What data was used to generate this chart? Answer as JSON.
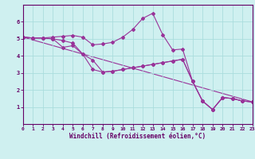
{
  "xlabel": "Windchill (Refroidissement éolien,°C)",
  "background_color": "#cff0f0",
  "line_color": "#993399",
  "grid_color": "#aadddd",
  "xlim": [
    0,
    23
  ],
  "ylim": [
    0,
    7
  ],
  "xticks": [
    0,
    1,
    2,
    3,
    4,
    5,
    6,
    7,
    8,
    9,
    10,
    11,
    12,
    13,
    14,
    15,
    16,
    17,
    18,
    19,
    20,
    21,
    22,
    23
  ],
  "yticks": [
    1,
    2,
    3,
    4,
    5,
    6
  ],
  "lines": [
    {
      "x": [
        0,
        1,
        2,
        3,
        4,
        5,
        6,
        7,
        8,
        9,
        10,
        11,
        12,
        13,
        14,
        15,
        16,
        17,
        18,
        19,
        20,
        21,
        22,
        23
      ],
      "y": [
        5.1,
        5.05,
        5.05,
        5.1,
        5.15,
        5.2,
        5.1,
        4.65,
        4.7,
        4.8,
        5.1,
        5.55,
        6.2,
        6.5,
        5.25,
        4.35,
        4.4,
        2.5,
        1.35,
        0.85,
        1.55,
        1.5,
        1.35,
        1.3
      ]
    },
    {
      "x": [
        0,
        1,
        2,
        3,
        4,
        5,
        6,
        7,
        8,
        9,
        10,
        11,
        12,
        13,
        14,
        15,
        16,
        17,
        18,
        19,
        20,
        21,
        22,
        23
      ],
      "y": [
        5.1,
        5.05,
        5.05,
        5.0,
        4.9,
        4.75,
        4.1,
        3.75,
        3.05,
        3.1,
        3.2,
        3.3,
        3.4,
        3.5,
        3.6,
        3.7,
        3.8,
        2.5,
        1.35,
        0.85,
        1.55,
        1.5,
        1.35,
        1.3
      ]
    },
    {
      "x": [
        0,
        1,
        2,
        3,
        4,
        5,
        6,
        7,
        8,
        9,
        10,
        11,
        12,
        13,
        14,
        15,
        16,
        17,
        18,
        19,
        20,
        21,
        22,
        23
      ],
      "y": [
        5.1,
        5.05,
        5.05,
        5.0,
        4.5,
        4.6,
        4.1,
        3.2,
        3.05,
        3.1,
        3.2,
        3.3,
        3.4,
        3.5,
        3.6,
        3.7,
        3.8,
        2.5,
        1.35,
        0.85,
        1.55,
        1.5,
        1.35,
        1.3
      ]
    },
    {
      "x": [
        0,
        23
      ],
      "y": [
        5.1,
        1.3
      ]
    }
  ],
  "marker": "D",
  "markersize": 2.0,
  "linewidth": 0.8,
  "tick_labelsize": 5,
  "xlabel_fontsize": 5.5,
  "spine_color": "#660066",
  "tick_color": "#660066"
}
